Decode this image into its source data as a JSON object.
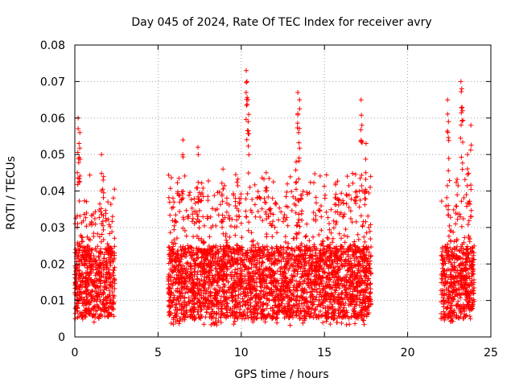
{
  "chart_data": {
    "type": "scatter",
    "title": "Day 045 of 2024, Rate Of TEC Index for receiver avry",
    "xlabel": "GPS time / hours",
    "ylabel": "ROTI / TECUs",
    "xlim": [
      0,
      25
    ],
    "ylim": [
      0,
      0.08
    ],
    "xticks": [
      0,
      5,
      10,
      15,
      20,
      25
    ],
    "xtick_labels": [
      "0",
      "5",
      "10",
      "15",
      "20",
      "25"
    ],
    "yticks": [
      0,
      0.01,
      0.02,
      0.03,
      0.04,
      0.05,
      0.06,
      0.07,
      0.08
    ],
    "ytick_labels": [
      "0",
      "0.01",
      "0.02",
      "0.03",
      "0.04",
      "0.05",
      "0.06",
      "0.07",
      "0.08"
    ],
    "grid": true,
    "marker": "+",
    "color": "#ff0000",
    "segments": [
      {
        "x_start": 0.0,
        "x_end": 2.4,
        "typical_range": [
          0.004,
          0.035
        ],
        "peaks": [
          [
            0.2,
            0.06
          ],
          [
            0.25,
            0.053
          ],
          [
            0.3,
            0.056
          ],
          [
            1.6,
            0.05
          ],
          [
            1.7,
            0.043
          ],
          [
            0.15,
            0.045
          ]
        ]
      },
      {
        "x_start": 5.6,
        "x_end": 17.8,
        "typical_range": [
          0.003,
          0.04
        ],
        "peaks": [
          [
            6.5,
            0.054
          ],
          [
            7.4,
            0.052
          ],
          [
            10.3,
            0.073
          ],
          [
            10.35,
            0.07
          ],
          [
            10.4,
            0.065
          ],
          [
            10.45,
            0.061
          ],
          [
            13.4,
            0.067
          ],
          [
            13.5,
            0.065
          ],
          [
            13.45,
            0.056
          ],
          [
            13.3,
            0.048
          ],
          [
            17.2,
            0.065
          ],
          [
            17.25,
            0.058
          ],
          [
            17.5,
            0.053
          ],
          [
            8.9,
            0.046
          ],
          [
            11.5,
            0.045
          ]
        ]
      },
      {
        "x_start": 22.0,
        "x_end": 24.0,
        "typical_range": [
          0.004,
          0.038
        ],
        "peaks": [
          [
            22.4,
            0.065
          ],
          [
            22.45,
            0.059
          ],
          [
            23.2,
            0.07
          ],
          [
            23.25,
            0.068
          ],
          [
            23.3,
            0.062
          ],
          [
            23.8,
            0.058
          ],
          [
            23.6,
            0.05
          ]
        ]
      }
    ]
  }
}
